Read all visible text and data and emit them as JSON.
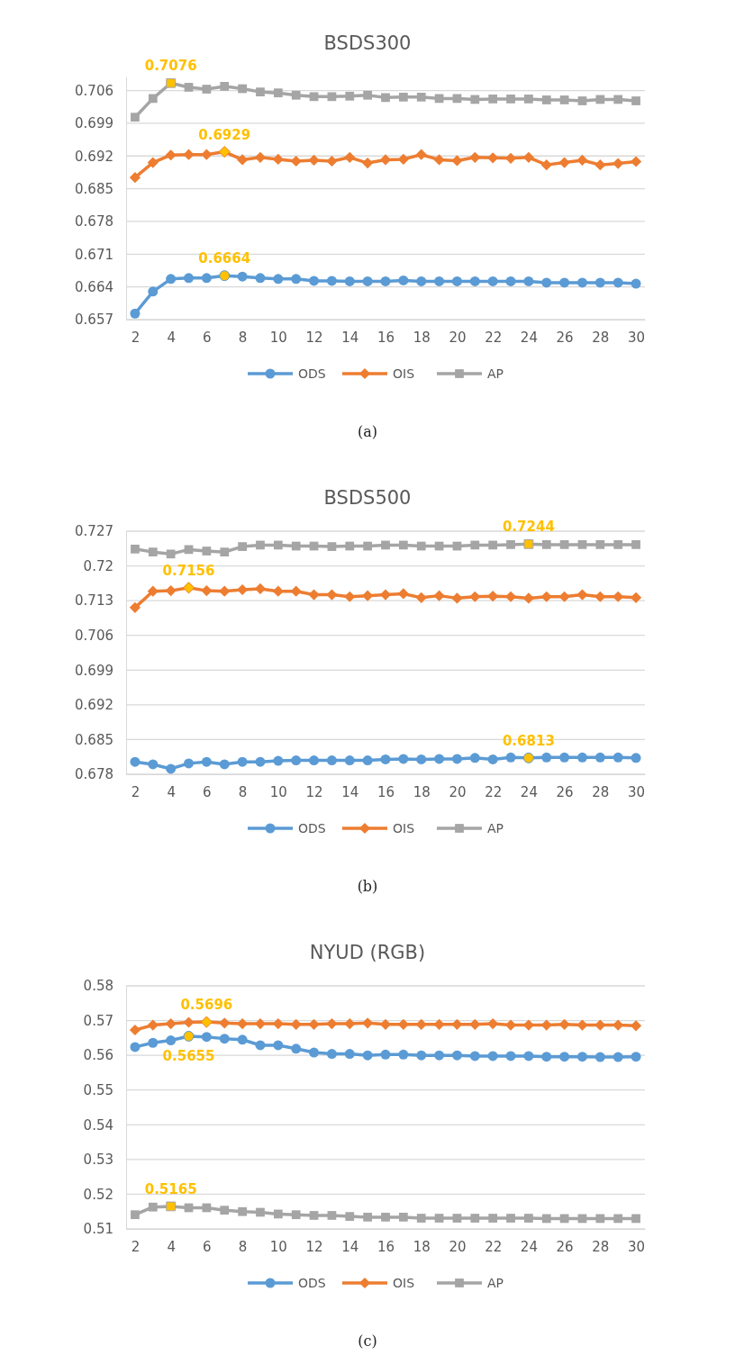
{
  "chart_data": [
    {
      "type": "line",
      "title": "BSDS300",
      "x": [
        2,
        3,
        4,
        5,
        6,
        7,
        8,
        9,
        10,
        11,
        12,
        13,
        14,
        15,
        16,
        17,
        18,
        19,
        20,
        21,
        22,
        23,
        24,
        25,
        26,
        27,
        28,
        29,
        30
      ],
      "xlim": [
        1.5,
        30.5
      ],
      "xticks": [
        2,
        4,
        6,
        8,
        10,
        12,
        14,
        16,
        18,
        20,
        22,
        24,
        26,
        28,
        30
      ],
      "ylim": [
        0.657,
        0.709
      ],
      "yticks": [
        0.657,
        0.664,
        0.671,
        0.678,
        0.685,
        0.692,
        0.699,
        0.706
      ],
      "grid": "y",
      "legend": "bottom",
      "series": [
        {
          "name": "ODS",
          "color": "#5b9bd5",
          "marker": "circle",
          "values": [
            0.6583,
            0.663,
            0.6657,
            0.6659,
            0.6659,
            0.6664,
            0.6662,
            0.6659,
            0.6657,
            0.6657,
            0.6653,
            0.6653,
            0.6652,
            0.6652,
            0.6652,
            0.6654,
            0.6652,
            0.6652,
            0.6652,
            0.6652,
            0.6652,
            0.6652,
            0.6652,
            0.6649,
            0.6649,
            0.6649,
            0.6649,
            0.6649,
            0.6647
          ],
          "colors": [
            "#5b9bd5",
            "#5b9bd5",
            "#5b9bd5",
            "#5b9bd5",
            "#5b9bd5",
            "#ffc000",
            "#5b9bd5",
            "#5b9bd5",
            "#5b9bd5",
            "#5b9bd5",
            "#5b9bd5",
            "#5b9bd5",
            "#5b9bd5",
            "#5b9bd5",
            "#5b9bd5",
            "#5b9bd5",
            "#5b9bd5",
            "#5b9bd5",
            "#5b9bd5",
            "#5b9bd5",
            "#5b9bd5",
            "#5b9bd5",
            "#5b9bd5",
            "#5b9bd5",
            "#5b9bd5",
            "#5b9bd5",
            "#5b9bd5",
            "#5b9bd5",
            "#5b9bd5"
          ]
        },
        {
          "name": "OIS",
          "color": "#ed7d31",
          "marker": "diamond",
          "values": [
            0.6874,
            0.6906,
            0.6922,
            0.6923,
            0.6923,
            0.6929,
            0.6912,
            0.6917,
            0.6913,
            0.6909,
            0.6911,
            0.6909,
            0.6917,
            0.6905,
            0.6912,
            0.6913,
            0.6923,
            0.6912,
            0.691,
            0.6917,
            0.6916,
            0.6915,
            0.6917,
            0.6901,
            0.6906,
            0.6911,
            0.6901,
            0.6904,
            0.6908
          ],
          "colors": [
            "#ed7d31",
            "#ed7d31",
            "#ed7d31",
            "#ed7d31",
            "#ed7d31",
            "#ffc000",
            "#ed7d31",
            "#ed7d31",
            "#ed7d31",
            "#ed7d31",
            "#ed7d31",
            "#ed7d31",
            "#ed7d31",
            "#ed7d31",
            "#ed7d31",
            "#ed7d31",
            "#ed7d31",
            "#ed7d31",
            "#ed7d31",
            "#ed7d31",
            "#ed7d31",
            "#ed7d31",
            "#ed7d31",
            "#ed7d31",
            "#ed7d31",
            "#ed7d31",
            "#ed7d31",
            "#ed7d31",
            "#ed7d31"
          ]
        },
        {
          "name": "AP",
          "color": "#a5a5a5",
          "marker": "square",
          "values": [
            0.7003,
            0.7043,
            0.7076,
            0.7067,
            0.7063,
            0.7069,
            0.7064,
            0.7057,
            0.7055,
            0.705,
            0.7047,
            0.7047,
            0.7048,
            0.705,
            0.7045,
            0.7046,
            0.7046,
            0.7043,
            0.7043,
            0.7041,
            0.7042,
            0.7042,
            0.7042,
            0.704,
            0.704,
            0.7038,
            0.7041,
            0.7041,
            0.7038
          ],
          "colors": [
            "#a5a5a5",
            "#a5a5a5",
            "#ffc000",
            "#a5a5a5",
            "#a5a5a5",
            "#a5a5a5",
            "#a5a5a5",
            "#a5a5a5",
            "#a5a5a5",
            "#a5a5a5",
            "#a5a5a5",
            "#a5a5a5",
            "#a5a5a5",
            "#a5a5a5",
            "#a5a5a5",
            "#a5a5a5",
            "#a5a5a5",
            "#a5a5a5",
            "#a5a5a5",
            "#a5a5a5",
            "#a5a5a5",
            "#a5a5a5",
            "#a5a5a5",
            "#a5a5a5",
            "#a5a5a5",
            "#a5a5a5",
            "#a5a5a5",
            "#a5a5a5",
            "#a5a5a5"
          ]
        }
      ],
      "annotations": [
        {
          "text": "0.7076",
          "x": 4,
          "y": 0.7076
        },
        {
          "text": "0.6929",
          "x": 7,
          "y": 0.6929
        },
        {
          "text": "0.6664",
          "x": 7,
          "y": 0.6664
        },
        "(a)"
      ]
    },
    {
      "type": "line",
      "title": "BSDS500",
      "x": [
        2,
        3,
        4,
        5,
        6,
        7,
        8,
        9,
        10,
        11,
        12,
        13,
        14,
        15,
        16,
        17,
        18,
        19,
        20,
        21,
        22,
        23,
        24,
        25,
        26,
        27,
        28,
        29,
        30
      ],
      "xlim": [
        1.5,
        30.5
      ],
      "xticks": [
        2,
        4,
        6,
        8,
        10,
        12,
        14,
        16,
        18,
        20,
        22,
        24,
        26,
        28,
        30
      ],
      "ylim": [
        0.678,
        0.727
      ],
      "yticks": [
        0.678,
        0.685,
        0.692,
        0.699,
        0.706,
        0.713,
        0.72,
        0.727
      ],
      "grid": "y",
      "legend": "bottom",
      "series": [
        {
          "name": "ODS",
          "color": "#5b9bd5",
          "marker": "circle",
          "values": [
            0.6805,
            0.68,
            0.6791,
            0.6802,
            0.6805,
            0.68,
            0.6805,
            0.6805,
            0.6807,
            0.6808,
            0.6808,
            0.6808,
            0.6808,
            0.6808,
            0.681,
            0.6811,
            0.681,
            0.6811,
            0.6811,
            0.6813,
            0.681,
            0.6814,
            0.6813,
            0.6814,
            0.6814,
            0.6814,
            0.6814,
            0.6814,
            0.6813
          ],
          "colors": [
            "#5b9bd5",
            "#5b9bd5",
            "#5b9bd5",
            "#5b9bd5",
            "#5b9bd5",
            "#5b9bd5",
            "#5b9bd5",
            "#5b9bd5",
            "#5b9bd5",
            "#5b9bd5",
            "#5b9bd5",
            "#5b9bd5",
            "#5b9bd5",
            "#5b9bd5",
            "#5b9bd5",
            "#5b9bd5",
            "#5b9bd5",
            "#5b9bd5",
            "#5b9bd5",
            "#5b9bd5",
            "#5b9bd5",
            "#5b9bd5",
            "#ffc000",
            "#5b9bd5",
            "#5b9bd5",
            "#5b9bd5",
            "#5b9bd5",
            "#5b9bd5",
            "#5b9bd5"
          ]
        },
        {
          "name": "OIS",
          "color": "#ed7d31",
          "marker": "diamond",
          "values": [
            0.7116,
            0.7149,
            0.715,
            0.7156,
            0.715,
            0.7149,
            0.7152,
            0.7154,
            0.7149,
            0.7149,
            0.7142,
            0.7142,
            0.7138,
            0.714,
            0.7142,
            0.7144,
            0.7136,
            0.714,
            0.7135,
            0.7138,
            0.7139,
            0.7138,
            0.7135,
            0.7138,
            0.7138,
            0.7142,
            0.7138,
            0.7138,
            0.7136
          ],
          "colors": [
            "#ed7d31",
            "#ed7d31",
            "#ed7d31",
            "#ffc000",
            "#ed7d31",
            "#ed7d31",
            "#ed7d31",
            "#ed7d31",
            "#ed7d31",
            "#ed7d31",
            "#ed7d31",
            "#ed7d31",
            "#ed7d31",
            "#ed7d31",
            "#ed7d31",
            "#ed7d31",
            "#ed7d31",
            "#ed7d31",
            "#ed7d31",
            "#ed7d31",
            "#ed7d31",
            "#ed7d31",
            "#ed7d31",
            "#ed7d31",
            "#ed7d31",
            "#ed7d31",
            "#ed7d31",
            "#ed7d31",
            "#ed7d31"
          ]
        },
        {
          "name": "AP",
          "color": "#a5a5a5",
          "marker": "square",
          "values": [
            0.7234,
            0.7228,
            0.7224,
            0.7233,
            0.723,
            0.7228,
            0.7239,
            0.7242,
            0.7242,
            0.724,
            0.724,
            0.7239,
            0.724,
            0.724,
            0.7242,
            0.7242,
            0.724,
            0.724,
            0.724,
            0.7242,
            0.7242,
            0.7243,
            0.7244,
            0.7243,
            0.7243,
            0.7243,
            0.7243,
            0.7243,
            0.7243
          ],
          "colors": [
            "#a5a5a5",
            "#a5a5a5",
            "#a5a5a5",
            "#a5a5a5",
            "#a5a5a5",
            "#a5a5a5",
            "#a5a5a5",
            "#a5a5a5",
            "#a5a5a5",
            "#a5a5a5",
            "#a5a5a5",
            "#a5a5a5",
            "#a5a5a5",
            "#a5a5a5",
            "#a5a5a5",
            "#a5a5a5",
            "#a5a5a5",
            "#a5a5a5",
            "#a5a5a5",
            "#a5a5a5",
            "#a5a5a5",
            "#a5a5a5",
            "#ffc000",
            "#a5a5a5",
            "#a5a5a5",
            "#a5a5a5",
            "#a5a5a5",
            "#a5a5a5",
            "#a5a5a5"
          ]
        }
      ],
      "annotations": [
        {
          "text": "0.7244",
          "x": 24,
          "y": 0.7244
        },
        {
          "text": "0.7156",
          "x": 5,
          "y": 0.7156
        },
        {
          "text": "0.6813",
          "x": 24,
          "y": 0.6813
        },
        "(b)"
      ]
    },
    {
      "type": "line",
      "title": "NYUD (RGB)",
      "x": [
        2,
        3,
        4,
        5,
        6,
        7,
        8,
        9,
        10,
        11,
        12,
        13,
        14,
        15,
        16,
        17,
        18,
        19,
        20,
        21,
        22,
        23,
        24,
        25,
        26,
        27,
        28,
        29,
        30
      ],
      "xlim": [
        1.5,
        30.5
      ],
      "xticks": [
        2,
        4,
        6,
        8,
        10,
        12,
        14,
        16,
        18,
        20,
        22,
        24,
        26,
        28,
        30
      ],
      "ylim": [
        0.51,
        0.58
      ],
      "yticks": [
        0.51,
        0.52,
        0.53,
        0.54,
        0.55,
        0.56,
        0.57,
        0.58
      ],
      "grid": "y",
      "legend": "bottom",
      "series": [
        {
          "name": "ODS",
          "color": "#5b9bd5",
          "marker": "circle",
          "values": [
            0.5624,
            0.5636,
            0.5643,
            0.5655,
            0.5653,
            0.5648,
            0.5645,
            0.5629,
            0.5629,
            0.5619,
            0.5608,
            0.5604,
            0.5604,
            0.56,
            0.5602,
            0.5602,
            0.56,
            0.56,
            0.56,
            0.5598,
            0.5598,
            0.5598,
            0.5598,
            0.5596,
            0.5596,
            0.5596,
            0.5595,
            0.5595,
            0.5596
          ],
          "colors": [
            "#5b9bd5",
            "#5b9bd5",
            "#5b9bd5",
            "#ffc000",
            "#5b9bd5",
            "#5b9bd5",
            "#5b9bd5",
            "#5b9bd5",
            "#5b9bd5",
            "#5b9bd5",
            "#5b9bd5",
            "#5b9bd5",
            "#5b9bd5",
            "#5b9bd5",
            "#5b9bd5",
            "#5b9bd5",
            "#5b9bd5",
            "#5b9bd5",
            "#5b9bd5",
            "#5b9bd5",
            "#5b9bd5",
            "#5b9bd5",
            "#5b9bd5",
            "#5b9bd5",
            "#5b9bd5",
            "#5b9bd5",
            "#5b9bd5",
            "#5b9bd5",
            "#5b9bd5"
          ]
        },
        {
          "name": "OIS",
          "color": "#ed7d31",
          "marker": "diamond",
          "values": [
            0.5673,
            0.5687,
            0.5691,
            0.5695,
            0.5696,
            0.5693,
            0.5691,
            0.5691,
            0.5691,
            0.5689,
            0.5689,
            0.5691,
            0.5691,
            0.5693,
            0.5689,
            0.5689,
            0.5689,
            0.5689,
            0.5689,
            0.5689,
            0.5691,
            0.5687,
            0.5687,
            0.5687,
            0.5689,
            0.5687,
            0.5687,
            0.5687,
            0.5685
          ],
          "colors": [
            "#ed7d31",
            "#ed7d31",
            "#ed7d31",
            "#ed7d31",
            "#ffc000",
            "#ed7d31",
            "#ed7d31",
            "#ed7d31",
            "#ed7d31",
            "#ed7d31",
            "#ed7d31",
            "#ed7d31",
            "#ed7d31",
            "#ed7d31",
            "#ed7d31",
            "#ed7d31",
            "#ed7d31",
            "#ed7d31",
            "#ed7d31",
            "#ed7d31",
            "#ed7d31",
            "#ed7d31",
            "#ed7d31",
            "#ed7d31",
            "#ed7d31",
            "#ed7d31",
            "#ed7d31",
            "#ed7d31",
            "#ed7d31"
          ]
        },
        {
          "name": "AP",
          "color": "#a5a5a5",
          "marker": "square",
          "values": [
            0.5141,
            0.5163,
            0.5165,
            0.5161,
            0.5161,
            0.5154,
            0.515,
            0.5148,
            0.5143,
            0.5141,
            0.5139,
            0.5139,
            0.5136,
            0.5134,
            0.5134,
            0.5134,
            0.5131,
            0.5131,
            0.5131,
            0.5131,
            0.5131,
            0.5131,
            0.5131,
            0.513,
            0.513,
            0.513,
            0.513,
            0.513,
            0.513
          ],
          "colors": [
            "#a5a5a5",
            "#a5a5a5",
            "#ffc000",
            "#a5a5a5",
            "#a5a5a5",
            "#a5a5a5",
            "#a5a5a5",
            "#a5a5a5",
            "#a5a5a5",
            "#a5a5a5",
            "#a5a5a5",
            "#a5a5a5",
            "#a5a5a5",
            "#a5a5a5",
            "#a5a5a5",
            "#a5a5a5",
            "#a5a5a5",
            "#a5a5a5",
            "#a5a5a5",
            "#a5a5a5",
            "#a5a5a5",
            "#a5a5a5",
            "#a5a5a5",
            "#a5a5a5",
            "#a5a5a5",
            "#a5a5a5",
            "#a5a5a5",
            "#a5a5a5",
            "#a5a5a5"
          ]
        }
      ],
      "annotations": [
        {
          "text": "0.5696",
          "x": 6,
          "y": 0.5696
        },
        {
          "text": "0.5655",
          "x": 5,
          "y": 0.5655
        },
        {
          "text": "0.5165",
          "x": 4,
          "y": 0.5165
        },
        "(c)"
      ]
    }
  ]
}
